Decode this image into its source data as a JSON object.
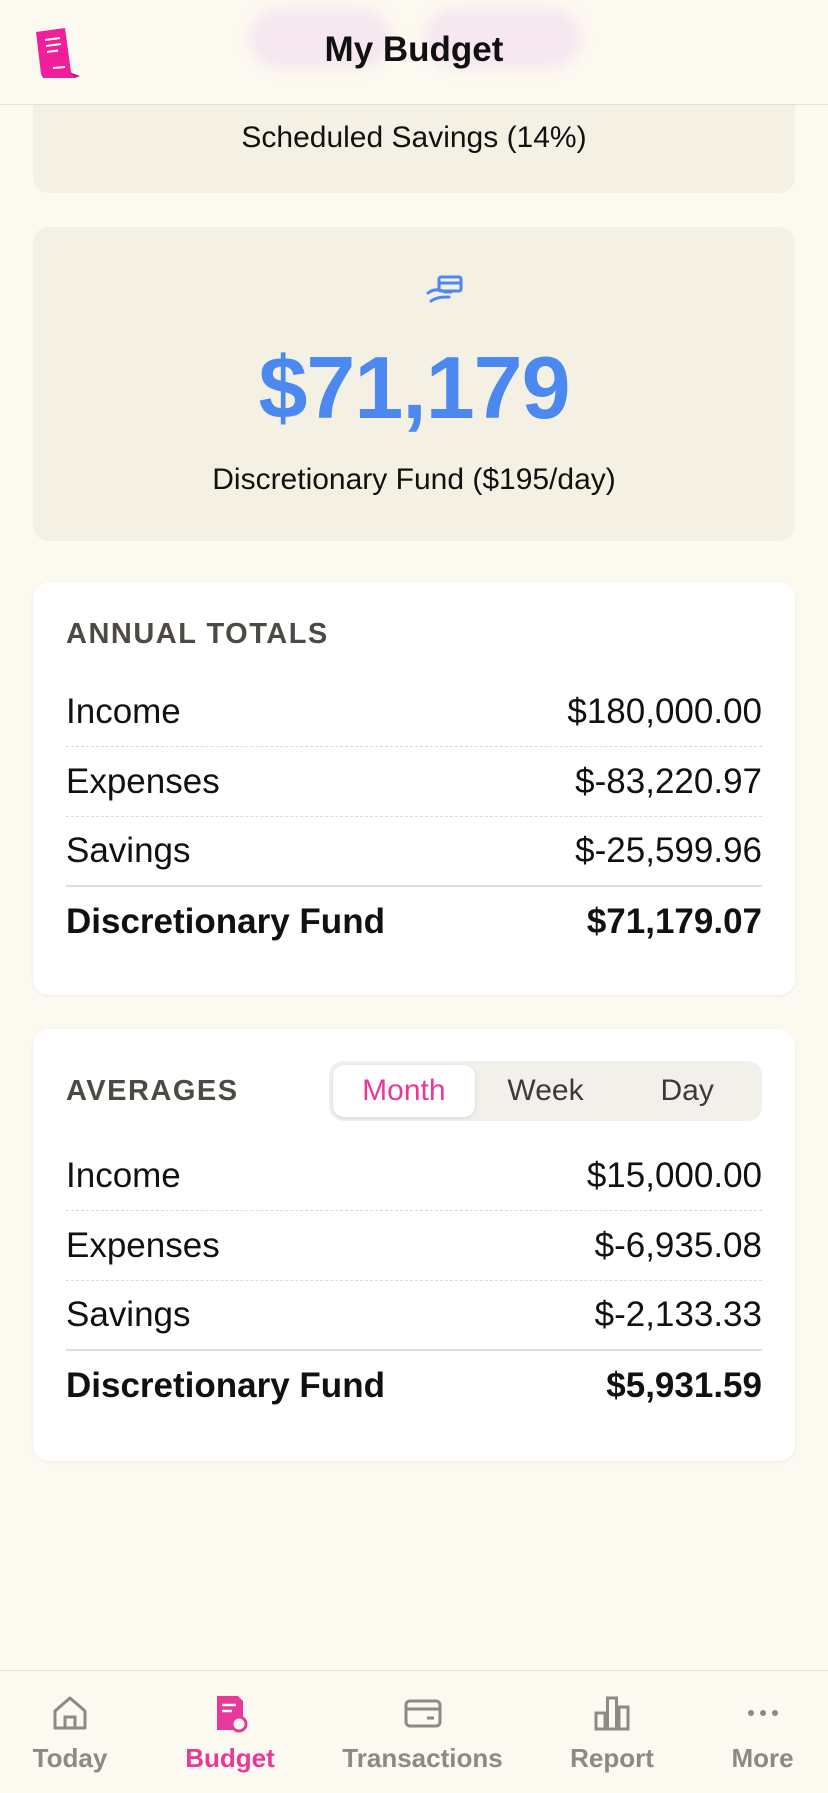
{
  "header": {
    "title": "My Budget"
  },
  "scheduled_savings": {
    "label": "Scheduled Savings (14%)"
  },
  "discretionary": {
    "amount": "$71,179",
    "caption": "Discretionary Fund ($195/day)"
  },
  "annual_totals": {
    "title": "ANNUAL TOTALS",
    "rows": [
      {
        "label": "Income",
        "value": "$180,000.00"
      },
      {
        "label": "Expenses",
        "value": "$-83,220.97"
      },
      {
        "label": "Savings",
        "value": "$-25,599.96"
      },
      {
        "label": "Discretionary Fund",
        "value": "$71,179.07"
      }
    ]
  },
  "averages": {
    "title": "AVERAGES",
    "periods": [
      "Month",
      "Week",
      "Day"
    ],
    "selected_period": "Month",
    "rows": [
      {
        "label": "Income",
        "value": "$15,000.00"
      },
      {
        "label": "Expenses",
        "value": "$-6,935.08"
      },
      {
        "label": "Savings",
        "value": "$-2,133.33"
      },
      {
        "label": "Discretionary Fund",
        "value": "$5,931.59"
      }
    ]
  },
  "nav": {
    "items": [
      {
        "label": "Today",
        "icon": "home-icon"
      },
      {
        "label": "Budget",
        "icon": "budget-icon"
      },
      {
        "label": "Transactions",
        "icon": "card-icon"
      },
      {
        "label": "Report",
        "icon": "bar-chart-icon"
      },
      {
        "label": "More",
        "icon": "more-icon"
      }
    ],
    "active": "Budget"
  },
  "colors": {
    "accent_pink": "#e8389a",
    "accent_blue": "#4b88f0",
    "background": "#fcf9f0"
  }
}
